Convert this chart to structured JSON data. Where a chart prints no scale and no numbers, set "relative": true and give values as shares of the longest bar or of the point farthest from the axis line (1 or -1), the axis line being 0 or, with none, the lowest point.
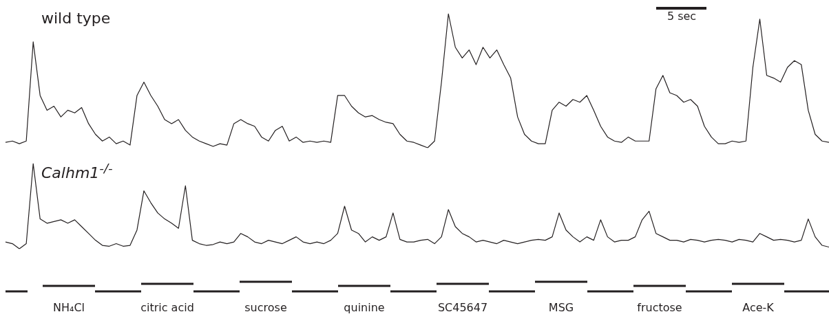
{
  "chart_data": [
    {
      "type": "line",
      "relative": true,
      "categories": [
        null,
        null,
        null,
        null,
        null,
        null,
        null,
        null,
        null,
        null,
        null,
        null,
        null,
        null,
        null,
        null,
        null,
        null,
        null,
        null,
        null,
        null,
        null,
        null,
        null,
        null,
        null,
        null,
        null,
        null,
        null,
        null,
        null,
        null,
        null,
        null,
        null,
        null,
        null,
        null,
        null,
        null,
        null,
        null,
        null,
        null,
        null,
        null,
        null,
        null,
        null,
        null,
        null,
        null,
        null,
        null,
        null,
        null,
        null,
        null,
        null,
        null,
        null,
        null,
        null,
        null,
        null,
        null,
        null,
        null,
        null,
        null,
        null,
        null,
        null,
        null,
        null,
        null,
        null,
        null,
        null,
        null,
        null,
        null,
        null,
        null,
        null,
        null,
        null,
        null,
        null,
        null,
        null,
        null,
        null,
        null,
        null,
        null,
        null,
        null,
        null,
        null,
        null,
        null,
        null,
        null,
        null,
        null,
        null,
        null,
        null,
        null,
        null,
        null,
        null,
        null,
        null,
        null,
        null,
        null
      ],
      "series": [
        {
          "name": "wild type",
          "color": "#231f20",
          "values": [
            0.04,
            0.05,
            0.03,
            0.05,
            0.79,
            0.39,
            0.28,
            0.31,
            0.23,
            0.28,
            0.26,
            0.3,
            0.18,
            0.1,
            0.05,
            0.08,
            0.03,
            0.05,
            0.02,
            0.39,
            0.49,
            0.39,
            0.31,
            0.21,
            0.18,
            0.21,
            0.13,
            0.08,
            0.05,
            0.03,
            0.01,
            0.03,
            0.02,
            0.18,
            0.21,
            0.18,
            0.16,
            0.08,
            0.05,
            0.13,
            0.16,
            0.05,
            0.08,
            0.04,
            0.05,
            0.04,
            0.05,
            0.04,
            0.39,
            0.39,
            0.31,
            0.26,
            0.23,
            0.24,
            0.21,
            0.19,
            0.18,
            0.1,
            0.05,
            0.04,
            0.02,
            0,
            0.05,
            0.49,
            1,
            0.75,
            0.67,
            0.73,
            0.62,
            0.75,
            0.67,
            0.73,
            0.62,
            0.52,
            0.23,
            0.1,
            0.05,
            0.03,
            0.03,
            0.28,
            0.34,
            0.31,
            0.36,
            0.34,
            0.39,
            0.28,
            0.16,
            0.08,
            0.05,
            0.04,
            0.08,
            0.05,
            0.05,
            0.05,
            0.44,
            0.54,
            0.41,
            0.39,
            0.34,
            0.36,
            0.31,
            0.16,
            0.08,
            0.03,
            0.03,
            0.05,
            0.04,
            0.05,
            0.6,
            0.96,
            0.54,
            0.52,
            0.49,
            0.6,
            0.65,
            0.62,
            0.28,
            0.1,
            0.05,
            0.04
          ]
        }
      ],
      "annotations": [
        "5 sec"
      ]
    },
    {
      "type": "line",
      "relative": true,
      "categories": [
        null,
        null,
        null,
        null,
        null,
        null,
        null,
        null,
        null,
        null,
        null,
        null,
        null,
        null,
        null,
        null,
        null,
        null,
        null,
        null,
        null,
        null,
        null,
        null,
        null,
        null,
        null,
        null,
        null,
        null,
        null,
        null,
        null,
        null,
        null,
        null,
        null,
        null,
        null,
        null,
        null,
        null,
        null,
        null,
        null,
        null,
        null,
        null,
        null,
        null,
        null,
        null,
        null,
        null,
        null,
        null,
        null,
        null,
        null,
        null,
        null,
        null,
        null,
        null,
        null,
        null,
        null,
        null,
        null,
        null,
        null,
        null,
        null,
        null,
        null,
        null,
        null,
        null,
        null,
        null,
        null,
        null,
        null,
        null,
        null,
        null,
        null,
        null,
        null,
        null,
        null,
        null,
        null,
        null,
        null,
        null,
        null,
        null,
        null,
        null,
        null,
        null,
        null,
        null,
        null,
        null,
        null,
        null,
        null,
        null,
        null,
        null,
        null,
        null,
        null,
        null,
        null,
        null,
        null,
        null
      ],
      "series": [
        {
          "name": "Calhm1$^{-/-}$",
          "color": "#231f20",
          "values": [
            0.08,
            0.06,
            0,
            0.06,
            1,
            0.35,
            0.3,
            0.32,
            0.34,
            0.3,
            0.34,
            0.26,
            0.18,
            0.1,
            0.04,
            0.03,
            0.06,
            0.03,
            0.04,
            0.22,
            0.68,
            0.54,
            0.42,
            0.35,
            0.3,
            0.24,
            0.74,
            0.1,
            0.06,
            0.04,
            0.05,
            0.08,
            0.06,
            0.08,
            0.18,
            0.14,
            0.08,
            0.06,
            0.1,
            0.08,
            0.06,
            0.1,
            0.14,
            0.08,
            0.06,
            0.08,
            0.06,
            0.1,
            0.18,
            0.5,
            0.22,
            0.18,
            0.08,
            0.14,
            0.1,
            0.14,
            0.42,
            0.11,
            0.08,
            0.08,
            0.1,
            0.11,
            0.06,
            0.14,
            0.46,
            0.26,
            0.18,
            0.14,
            0.08,
            0.1,
            0.08,
            0.06,
            0.1,
            0.08,
            0.06,
            0.08,
            0.1,
            0.11,
            0.1,
            0.14,
            0.42,
            0.22,
            0.14,
            0.08,
            0.14,
            0.1,
            0.34,
            0.14,
            0.08,
            0.1,
            0.1,
            0.14,
            0.34,
            0.44,
            0.18,
            0.14,
            0.1,
            0.1,
            0.08,
            0.11,
            0.1,
            0.08,
            0.1,
            0.11,
            0.1,
            0.08,
            0.11,
            0.1,
            0.08,
            0.18,
            0.14,
            0.1,
            0.11,
            0.1,
            0.08,
            0.1,
            0.35,
            0.14,
            0.04,
            0.02
          ]
        }
      ],
      "annotations": [
        "NH₄Cl",
        "citric acid",
        "sucrose",
        "quinine",
        "SC45647",
        "MSG",
        "fructose",
        "Ace-K"
      ]
    }
  ]
}
